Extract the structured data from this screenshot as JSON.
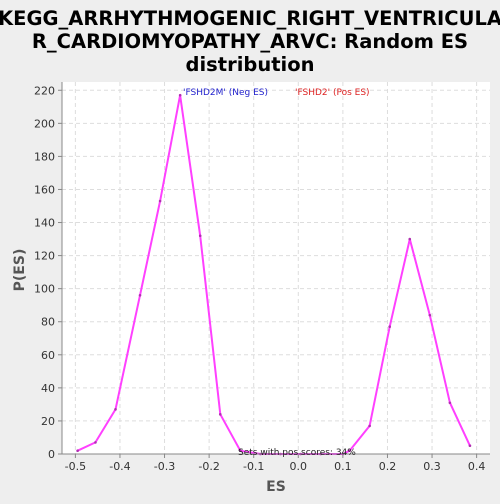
{
  "chart_data": {
    "type": "line",
    "title_lines": [
      "KEGG_ARRHYTHMOGENIC_RIGHT_VENTRICULA",
      "R_CARDIOMYOPATHY_ARVC: Random ES",
      "distribution"
    ],
    "xlabel": "ES",
    "ylabel": "P(ES)",
    "xlim": [
      -0.53,
      0.43
    ],
    "ylim": [
      0,
      225
    ],
    "xticks": [
      -0.5,
      -0.4,
      -0.3,
      -0.2,
      -0.1,
      0.0,
      0.1,
      0.2,
      0.3,
      0.4
    ],
    "xtick_labels": [
      "-0.5",
      "-0.4",
      "-0.3",
      "-0.2",
      "-0.1",
      "0.0",
      "0.1",
      "0.2",
      "0.3",
      "0.4"
    ],
    "yticks": [
      0,
      20,
      40,
      60,
      80,
      100,
      120,
      140,
      160,
      180,
      200,
      220
    ],
    "ytick_labels": [
      "0",
      "20",
      "40",
      "60",
      "80",
      "100",
      "120",
      "140",
      "160",
      "180",
      "200",
      "220"
    ],
    "grid": true,
    "line_color": "#ff40ff",
    "legend": [
      {
        "label": "'FSHD2M' (Neg ES)",
        "color": "#2222cc"
      },
      {
        "label": "'FSHD2' (Pos ES)",
        "color": "#dd2222"
      }
    ],
    "annotation": "Sets with pos scores: 34%",
    "series": [
      {
        "x": [
          -0.495,
          -0.455,
          -0.41,
          -0.355,
          -0.31,
          -0.265,
          -0.22,
          -0.175,
          -0.13,
          -0.085,
          -0.04,
          0.005,
          0.05,
          0.1,
          0.115,
          0.16,
          0.205,
          0.25,
          0.295,
          0.34,
          0.385
        ],
        "values": [
          2,
          7,
          27,
          96,
          153,
          217,
          132,
          24,
          2,
          0,
          0,
          0,
          0,
          0,
          2,
          17,
          77,
          130,
          84,
          31,
          5
        ]
      }
    ]
  }
}
